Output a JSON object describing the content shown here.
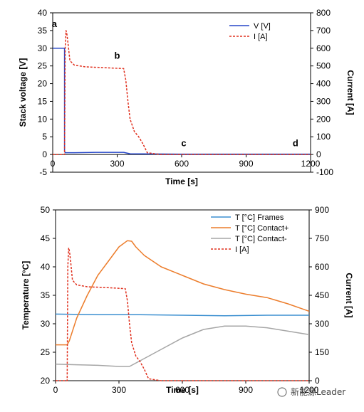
{
  "chart_data": [
    {
      "type": "line",
      "x_range": [
        0,
        1200
      ],
      "x_ticks": [
        0,
        300,
        600,
        900,
        1200
      ],
      "xlabel": "Time [s]",
      "ylabel_left": "Stack voltage [V]",
      "ylabel_right": "Current [A]",
      "ylim_left": [
        -5,
        40
      ],
      "ylim_right": [
        -100,
        800
      ],
      "yticks_left": [
        -5,
        0,
        5,
        10,
        15,
        20,
        25,
        30,
        35,
        40
      ],
      "yticks_right": [
        -100,
        0,
        100,
        200,
        300,
        400,
        500,
        600,
        700,
        800
      ],
      "grid": false,
      "legend_position": "top-right",
      "annotations": [
        {
          "text": "a",
          "x": 8,
          "y": 36
        },
        {
          "text": "b",
          "x": 300,
          "y": 27
        },
        {
          "text": "c",
          "x": 610,
          "y": 2.3
        },
        {
          "text": "d",
          "x": 1130,
          "y": 2.3
        }
      ],
      "series": [
        {
          "name": "V [V]",
          "axis": "left",
          "color": "#2646c8",
          "dash": "solid",
          "x": [
            0,
            55,
            55.1,
            58,
            100,
            200,
            300,
            330,
            360,
            600,
            1200
          ],
          "y": [
            30,
            30,
            1.0,
            0.5,
            0.5,
            0.6,
            0.6,
            0.6,
            0.2,
            0.1,
            0.1
          ]
        },
        {
          "name": "I [A]",
          "axis": "right",
          "color": "#e0301e",
          "dash": "dashed",
          "x": [
            0,
            55,
            58,
            62,
            66,
            72,
            80,
            100,
            150,
            250,
            330,
            340,
            350,
            360,
            380,
            400,
            420,
            440,
            500,
            600,
            1200
          ],
          "y": [
            0,
            0,
            600,
            700,
            680,
            620,
            530,
            505,
            495,
            490,
            485,
            420,
            300,
            200,
            130,
            100,
            60,
            10,
            0,
            0,
            0
          ]
        }
      ]
    },
    {
      "type": "line",
      "x_range": [
        0,
        1200
      ],
      "x_ticks": [
        0,
        300,
        600,
        900,
        1200
      ],
      "xlabel": "Time [s]",
      "ylabel_left": "Temperature [°C]",
      "ylabel_right": "Current [A]",
      "ylim_left": [
        20,
        50
      ],
      "ylim_right": [
        0,
        900
      ],
      "yticks_left": [
        20,
        25,
        30,
        35,
        40,
        45,
        50
      ],
      "yticks_right": [
        0,
        150,
        300,
        450,
        600,
        750,
        900
      ],
      "grid": false,
      "legend_position": "top-right",
      "series": [
        {
          "name": "T [°C] Frames",
          "axis": "left",
          "color": "#3b8fd0",
          "dash": "solid",
          "x": [
            0,
            200,
            400,
            600,
            800,
            1000,
            1200
          ],
          "y": [
            31.7,
            31.6,
            31.6,
            31.5,
            31.4,
            31.5,
            31.5
          ]
        },
        {
          "name": "T [°C] Contact+",
          "axis": "left",
          "color": "#ec7d2c",
          "dash": "solid",
          "x": [
            0,
            55,
            65,
            100,
            150,
            200,
            250,
            300,
            340,
            360,
            380,
            420,
            500,
            600,
            700,
            800,
            900,
            1000,
            1100,
            1200
          ],
          "y": [
            26.3,
            26.3,
            27.0,
            31.0,
            35.0,
            38.5,
            41.0,
            43.5,
            44.6,
            44.5,
            43.5,
            42.0,
            40.0,
            38.5,
            37.0,
            36.0,
            35.2,
            34.6,
            33.5,
            32.2
          ]
        },
        {
          "name": "T [°C] Contact-",
          "axis": "left",
          "color": "#a6a6a6",
          "dash": "solid",
          "x": [
            0,
            100,
            200,
            300,
            350,
            400,
            500,
            600,
            700,
            800,
            900,
            1000,
            1050,
            1100,
            1200
          ],
          "y": [
            22.9,
            22.8,
            22.7,
            22.5,
            22.5,
            23.5,
            25.5,
            27.5,
            29.0,
            29.6,
            29.6,
            29.3,
            29.0,
            28.7,
            28.1
          ]
        },
        {
          "name": "I [A]",
          "axis": "right",
          "color": "#e0301e",
          "dash": "dashed",
          "x": [
            0,
            55,
            58,
            62,
            66,
            72,
            80,
            100,
            150,
            250,
            330,
            340,
            350,
            360,
            380,
            400,
            420,
            440,
            500,
            600,
            1200
          ],
          "y": [
            0,
            0,
            600,
            700,
            680,
            620,
            530,
            505,
            495,
            490,
            485,
            420,
            300,
            200,
            130,
            100,
            60,
            10,
            0,
            0,
            0
          ]
        }
      ]
    }
  ],
  "watermark": {
    "text": "新能源Leader"
  }
}
